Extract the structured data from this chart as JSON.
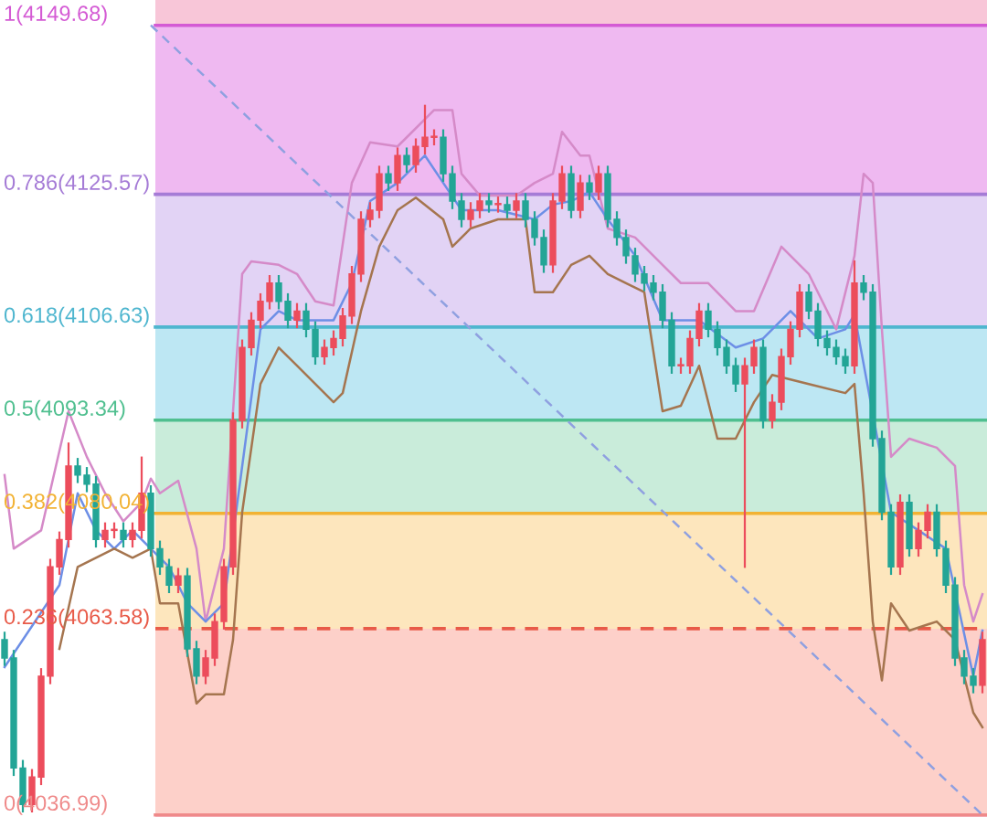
{
  "chart_data": {
    "type": "candlestick",
    "tick_labels": false,
    "legend": false,
    "ylim": [
      4036.7,
      4153.3
    ],
    "categories": [
      null,
      null,
      null,
      null,
      null,
      null,
      null,
      null,
      null,
      null,
      null,
      null,
      null,
      null,
      null,
      null,
      null,
      null,
      null,
      null,
      null,
      null,
      null,
      null,
      null,
      null,
      null,
      null,
      null,
      null,
      null,
      null,
      null,
      null,
      null,
      null,
      null,
      null,
      null,
      null,
      null,
      null,
      null,
      null,
      null,
      null,
      null,
      null,
      null,
      null,
      null,
      null,
      null,
      null,
      null,
      null,
      null,
      null,
      null,
      null,
      null,
      null,
      null,
      null,
      null,
      null,
      null,
      null,
      null,
      null,
      null,
      null,
      null,
      null,
      null,
      null,
      null,
      null,
      null,
      null,
      null,
      null,
      null,
      null,
      null,
      null,
      null,
      null,
      null,
      null,
      null,
      null,
      null,
      null,
      null,
      null,
      null,
      null,
      null,
      null,
      null,
      null,
      null,
      null,
      null,
      null,
      null,
      null
    ],
    "ohlc": [
      [
        4062.0,
        4063.0,
        4058.4,
        4059.4
      ],
      [
        4059.4,
        4060.4,
        4042.7,
        4043.7
      ],
      [
        4043.7,
        4044.7,
        4037.5,
        4038.5
      ],
      [
        4038.5,
        4043.4,
        4037.5,
        4042.4
      ],
      [
        4042.4,
        4057.8,
        4041.4,
        4056.8
      ],
      [
        4056.8,
        4073.4,
        4055.8,
        4072.4
      ],
      [
        4072.4,
        4077.3,
        4071.4,
        4076.3
      ],
      [
        4076.3,
        4090.0,
        4075.3,
        4086.8
      ],
      [
        4086.8,
        4087.8,
        4084.5,
        4085.5
      ],
      [
        4085.5,
        4086.5,
        4083.2,
        4084.2
      ],
      [
        4084.2,
        4085.2,
        4075.3,
        4076.3
      ],
      [
        4076.3,
        4078.6,
        4075.3,
        4077.6
      ],
      [
        4077.6,
        4078.6,
        4076.6,
        4077.6
      ],
      [
        4077.6,
        4078.6,
        4075.3,
        4076.3
      ],
      [
        4076.3,
        4078.6,
        4075.3,
        4077.6
      ],
      [
        4077.6,
        4088.0,
        4076.6,
        4082.9
      ],
      [
        4082.9,
        4083.9,
        4074.0,
        4075.0
      ],
      [
        4075.0,
        4076.0,
        4071.4,
        4072.4
      ],
      [
        4072.4,
        4073.4,
        4068.8,
        4069.8
      ],
      [
        4069.8,
        4072.1,
        4068.8,
        4071.1
      ],
      [
        4071.1,
        4072.1,
        4059.7,
        4060.7
      ],
      [
        4060.7,
        4061.7,
        4055.8,
        4056.8
      ],
      [
        4056.8,
        4060.4,
        4055.8,
        4059.4
      ],
      [
        4059.4,
        4065.6,
        4058.4,
        4064.6
      ],
      [
        4064.6,
        4073.4,
        4063.6,
        4072.4
      ],
      [
        4072.4,
        4094.3,
        4071.4,
        4093.3
      ],
      [
        4093.3,
        4104.7,
        4092.3,
        4103.7
      ],
      [
        4103.7,
        4108.6,
        4102.7,
        4107.6
      ],
      [
        4107.6,
        4111.3,
        4106.6,
        4110.3
      ],
      [
        4110.3,
        4113.9,
        4109.3,
        4112.9
      ],
      [
        4112.9,
        4113.9,
        4109.3,
        4110.3
      ],
      [
        4110.3,
        4111.3,
        4106.6,
        4107.6
      ],
      [
        4107.6,
        4109.9,
        4106.6,
        4108.9
      ],
      [
        4108.9,
        4109.9,
        4105.3,
        4106.3
      ],
      [
        4106.3,
        4107.3,
        4101.4,
        4102.4
      ],
      [
        4102.4,
        4104.7,
        4101.4,
        4103.7
      ],
      [
        4103.7,
        4106.0,
        4102.7,
        4105.0
      ],
      [
        4105.0,
        4109.2,
        4104.0,
        4108.2
      ],
      [
        4108.2,
        4115.2,
        4107.2,
        4114.2
      ],
      [
        4114.2,
        4123.0,
        4113.2,
        4122.0
      ],
      [
        4122.0,
        4124.3,
        4121.0,
        4123.3
      ],
      [
        4123.3,
        4129.5,
        4122.3,
        4128.5
      ],
      [
        4128.5,
        4129.5,
        4126.2,
        4127.2
      ],
      [
        4127.2,
        4132.1,
        4126.2,
        4131.1
      ],
      [
        4131.1,
        4132.1,
        4128.8,
        4129.8
      ],
      [
        4129.8,
        4133.4,
        4128.8,
        4132.4
      ],
      [
        4132.4,
        4138.2,
        4131.4,
        4133.7
      ],
      [
        4133.7,
        4134.7,
        4132.7,
        4133.7
      ],
      [
        4133.7,
        4134.7,
        4127.5,
        4128.5
      ],
      [
        4128.5,
        4129.5,
        4123.6,
        4124.6
      ],
      [
        4124.6,
        4125.6,
        4121.0,
        4122.0
      ],
      [
        4122.0,
        4124.3,
        4121.0,
        4123.3
      ],
      [
        4123.3,
        4125.6,
        4122.3,
        4124.6
      ],
      [
        4124.6,
        4125.6,
        4123.1,
        4124.1
      ],
      [
        4124.1,
        4125.1,
        4123.1,
        4124.1
      ],
      [
        4124.1,
        4125.1,
        4122.3,
        4123.3
      ],
      [
        4123.3,
        4125.6,
        4122.3,
        4124.6
      ],
      [
        4124.6,
        4125.6,
        4121.0,
        4122.0
      ],
      [
        4122.0,
        4123.0,
        4118.4,
        4119.4
      ],
      [
        4119.4,
        4120.4,
        4114.5,
        4115.5
      ],
      [
        4115.5,
        4125.6,
        4114.5,
        4124.6
      ],
      [
        4124.6,
        4129.5,
        4123.6,
        4128.5
      ],
      [
        4128.5,
        4129.5,
        4122.3,
        4123.3
      ],
      [
        4123.3,
        4128.2,
        4122.3,
        4127.2
      ],
      [
        4127.2,
        4128.2,
        4124.9,
        4125.9
      ],
      [
        4125.9,
        4129.5,
        4124.9,
        4128.5
      ],
      [
        4128.5,
        4129.5,
        4121.0,
        4122.0
      ],
      [
        4122.0,
        4123.0,
        4118.4,
        4119.4
      ],
      [
        4119.4,
        4120.4,
        4115.8,
        4116.8
      ],
      [
        4116.8,
        4117.8,
        4113.2,
        4114.2
      ],
      [
        4114.2,
        4115.2,
        4111.9,
        4112.9
      ],
      [
        4112.9,
        4113.9,
        4110.6,
        4111.6
      ],
      [
        4111.6,
        4112.6,
        4106.6,
        4107.6
      ],
      [
        4107.6,
        4108.6,
        4100.1,
        4101.1
      ],
      [
        4101.1,
        4102.1,
        4100.1,
        4101.1
      ],
      [
        4101.1,
        4106.0,
        4100.1,
        4105.0
      ],
      [
        4105.0,
        4109.9,
        4104.0,
        4108.9
      ],
      [
        4108.9,
        4109.9,
        4105.3,
        4106.3
      ],
      [
        4106.3,
        4107.3,
        4102.7,
        4103.7
      ],
      [
        4103.7,
        4104.7,
        4100.1,
        4101.1
      ],
      [
        4101.1,
        4102.1,
        4097.5,
        4098.5
      ],
      [
        4098.5,
        4102.1,
        4072.4,
        4101.1
      ],
      [
        4101.1,
        4104.7,
        4100.1,
        4103.7
      ],
      [
        4103.7,
        4104.7,
        4092.3,
        4093.3
      ],
      [
        4093.3,
        4096.9,
        4092.3,
        4095.9
      ],
      [
        4095.9,
        4103.4,
        4094.9,
        4102.4
      ],
      [
        4102.4,
        4107.3,
        4101.4,
        4106.3
      ],
      [
        4106.3,
        4112.6,
        4105.3,
        4111.6
      ],
      [
        4111.6,
        4112.6,
        4107.9,
        4108.9
      ],
      [
        4108.9,
        4109.9,
        4104.0,
        4105.0
      ],
      [
        4105.0,
        4106.0,
        4102.7,
        4103.7
      ],
      [
        4103.7,
        4104.7,
        4101.4,
        4102.4
      ],
      [
        4102.4,
        4103.4,
        4100.1,
        4101.1
      ],
      [
        4101.1,
        4116.0,
        4100.1,
        4112.9
      ],
      [
        4112.9,
        4113.9,
        4110.6,
        4111.6
      ],
      [
        4111.6,
        4112.6,
        4089.7,
        4090.7
      ],
      [
        4090.7,
        4091.7,
        4079.2,
        4080.2
      ],
      [
        4080.2,
        4081.2,
        4071.4,
        4072.4
      ],
      [
        4072.4,
        4082.6,
        4071.4,
        4081.6
      ],
      [
        4081.6,
        4082.6,
        4074.0,
        4075.0
      ],
      [
        4075.0,
        4078.6,
        4074.0,
        4077.6
      ],
      [
        4077.6,
        4081.2,
        4076.6,
        4080.2
      ],
      [
        4080.2,
        4081.2,
        4074.0,
        4075.0
      ],
      [
        4075.0,
        4076.0,
        4068.8,
        4069.8
      ],
      [
        4069.8,
        4070.8,
        4058.4,
        4059.4
      ],
      [
        4059.4,
        4060.4,
        4055.8,
        4056.8
      ],
      [
        4056.8,
        4057.8,
        4054.5,
        4055.5
      ],
      [
        4055.5,
        4063.0,
        4054.5,
        4062.0
      ]
    ],
    "series": [
      {
        "type": "line",
        "color": "#d58ac8",
        "values": [
          4085.5,
          4075.0,
          null,
          null,
          4077.6,
          null,
          null,
          4094.6,
          null,
          4088.1,
          null,
          4082.9,
          null,
          4078.9,
          null,
          4081.6,
          4085.0,
          4082.9,
          null,
          4084.7,
          null,
          4075.0,
          4064.6,
          null,
          4075.0,
          null,
          4114.2,
          4116.0,
          null,
          null,
          4115.5,
          null,
          4114.2,
          null,
          4110.3,
          null,
          4109.7,
          null,
          4127.2,
          null,
          4133.0,
          null,
          null,
          4132.4,
          null,
          null,
          null,
          4137.6,
          null,
          4137.6,
          4128.5,
          null,
          4125.4,
          null,
          null,
          null,
          4125.4,
          null,
          4127.2,
          null,
          4128.5,
          4134.5,
          null,
          4131.1,
          4131.1,
          null,
          4120.7,
          null,
          null,
          4119.4,
          null,
          null,
          4115.5,
          null,
          4112.9,
          null,
          null,
          4112.9,
          null,
          null,
          4108.9,
          null,
          4108.9,
          null,
          null,
          4118.1,
          null,
          null,
          4114.2,
          null,
          null,
          4106.3,
          null,
          4116.8,
          4128.5,
          4127.2,
          4106.3,
          4088.1,
          null,
          4090.7,
          null,
          null,
          4089.4,
          null,
          4086.8,
          4069.8,
          4064.6,
          4068.5
        ]
      },
      {
        "type": "line",
        "color": "#6d8fe6",
        "values": [
          4058.1,
          null,
          null,
          null,
          null,
          null,
          4069.8,
          null,
          4082.9,
          null,
          4077.6,
          null,
          4075.0,
          null,
          4077.6,
          null,
          4075.0,
          null,
          4072.4,
          null,
          4067.2,
          null,
          4064.6,
          null,
          4067.2,
          null,
          null,
          null,
          4106.3,
          null,
          4108.9,
          null,
          4107.6,
          null,
          4107.6,
          null,
          4107.6,
          null,
          4112.9,
          null,
          4124.6,
          null,
          null,
          4127.2,
          null,
          null,
          4131.1,
          null,
          4127.2,
          null,
          4123.3,
          null,
          null,
          null,
          4123.3,
          null,
          null,
          null,
          4122.0,
          null,
          4124.1,
          null,
          4124.6,
          null,
          4125.9,
          null,
          4122.0,
          null,
          null,
          4116.8,
          null,
          null,
          4107.6,
          null,
          null,
          null,
          4107.6,
          null,
          null,
          null,
          4103.7,
          null,
          null,
          4105.0,
          null,
          null,
          4108.9,
          null,
          null,
          4105.0,
          null,
          null,
          4106.3,
          4108.4,
          null,
          null,
          null,
          4080.2,
          null,
          null,
          4077.6,
          null,
          null,
          4075.0,
          null,
          null,
          4056.8,
          4063.3
        ]
      },
      {
        "type": "line",
        "color": "#a5754f",
        "values": [
          null,
          null,
          null,
          null,
          null,
          null,
          4060.7,
          null,
          4072.4,
          null,
          4073.7,
          null,
          4075.0,
          null,
          4073.7,
          null,
          4075.0,
          4067.2,
          null,
          4067.2,
          null,
          4052.9,
          4054.2,
          null,
          4054.2,
          4062.0,
          4080.2,
          null,
          4098.5,
          null,
          4103.7,
          null,
          4101.1,
          null,
          4098.5,
          null,
          4095.9,
          4097.2,
          null,
          4108.9,
          null,
          4118.1,
          null,
          4123.3,
          null,
          4125.1,
          null,
          null,
          4122.0,
          4118.1,
          null,
          4120.7,
          null,
          null,
          4122.0,
          null,
          null,
          4122.0,
          4111.6,
          null,
          4111.6,
          null,
          4115.5,
          null,
          4116.8,
          null,
          4114.2,
          null,
          4112.9,
          null,
          4111.6,
          null,
          4094.6,
          null,
          4095.4,
          null,
          4101.1,
          null,
          4090.7,
          null,
          4090.7,
          null,
          4095.9,
          null,
          4099.8,
          null,
          null,
          null,
          4098.5,
          null,
          null,
          null,
          4097.2,
          4098.5,
          4082.9,
          4064.6,
          4056.2,
          4067.2,
          null,
          4063.3,
          null,
          null,
          4064.6,
          null,
          4062.0,
          null,
          4051.6,
          4049.5
        ]
      },
      {
        "type": "line",
        "color": "#8fa0e0",
        "line_style": "dashed",
        "values": [
          null,
          null,
          null,
          null,
          null,
          null,
          null,
          null,
          null,
          null,
          null,
          null,
          null,
          null,
          null,
          null,
          4149.7,
          null,
          null,
          null,
          null,
          null,
          null,
          null,
          null,
          null,
          null,
          null,
          null,
          null,
          null,
          null,
          null,
          null,
          null,
          null,
          null,
          null,
          null,
          null,
          null,
          null,
          null,
          null,
          null,
          null,
          null,
          null,
          null,
          null,
          null,
          null,
          null,
          null,
          null,
          null,
          null,
          null,
          null,
          null,
          null,
          null,
          null,
          null,
          null,
          null,
          null,
          null,
          null,
          null,
          null,
          null,
          null,
          null,
          null,
          null,
          null,
          null,
          null,
          null,
          null,
          null,
          null,
          null,
          null,
          null,
          null,
          null,
          null,
          null,
          null,
          null,
          null,
          null,
          null,
          null,
          null,
          null,
          null,
          null,
          null,
          null,
          null,
          null,
          null,
          null,
          null,
          4037.0
        ]
      }
    ],
    "bands": [
      {
        "axis": "y",
        "from": 4149.68,
        "to": 4153.3,
        "color": "#f8c6d8"
      },
      {
        "axis": "y",
        "from": 4125.57,
        "to": 4149.68,
        "color": "#efb9f1"
      },
      {
        "axis": "y",
        "from": 4106.63,
        "to": 4125.57,
        "color": "#e2d3f5"
      },
      {
        "axis": "y",
        "from": 4093.34,
        "to": 4106.63,
        "color": "#bde7f3"
      },
      {
        "axis": "y",
        "from": 4080.04,
        "to": 4093.34,
        "color": "#c9ecda"
      },
      {
        "axis": "y",
        "from": 4063.58,
        "to": 4080.04,
        "color": "#fde6bd"
      },
      {
        "axis": "y",
        "from": 4036.99,
        "to": 4063.58,
        "color": "#fdd0c9"
      },
      {
        "axis": "y",
        "from": 4036.7,
        "to": 4036.99,
        "color": "#f8c6d8"
      }
    ],
    "ref_lines": [
      {
        "axis": "y",
        "value": 4149.68,
        "label": "1(4149.68)",
        "color": "#d45ad4"
      },
      {
        "axis": "y",
        "value": 4125.57,
        "label": "0.786(4125.57)",
        "color": "#a57bd6"
      },
      {
        "axis": "y",
        "value": 4106.63,
        "label": "0.618(4106.63)",
        "color": "#4fb6cf"
      },
      {
        "axis": "y",
        "value": 4093.34,
        "label": "0.5(4093.34)",
        "color": "#4fbf8f"
      },
      {
        "axis": "y",
        "value": 4080.04,
        "label": "0.382(4080.04)",
        "color": "#f2b233"
      },
      {
        "axis": "y",
        "value": 4063.58,
        "label": "0.236(4063.58)",
        "color": "#e85a48",
        "line_style": "dashed"
      },
      {
        "axis": "y",
        "value": 4036.99,
        "label": "0(4036.99)",
        "color": "#ef8a8a"
      }
    ]
  }
}
